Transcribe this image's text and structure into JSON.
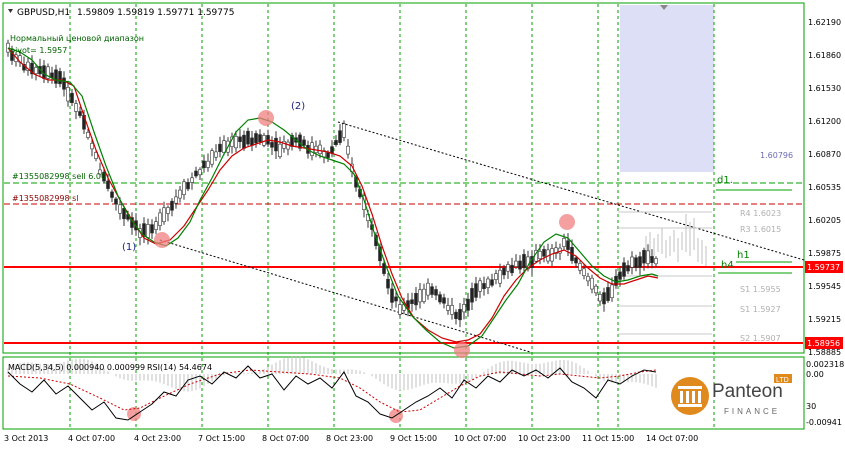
{
  "window": {
    "title": "GBPUSD,H1",
    "ohlc": "1.59809 1.59819 1.59771 1.59775",
    "indicator_lines": [
      "Нормальный ценовой диапазон",
      "pivot= 1.5957"
    ]
  },
  "order_labels": {
    "sell_order": "#1355082998 sell 6.00",
    "stop_loss": "#1355082998 sl"
  },
  "wave_labels": [
    "(1)",
    "(2)"
  ],
  "price_axis": {
    "ticks": [
      "1.62190",
      "1.61860",
      "1.61530",
      "1.61200",
      "1.60870",
      "1.60535",
      "1.60205",
      "1.59875",
      "1.59545",
      "1.59215",
      "1.58885"
    ],
    "current_price": "1.59737",
    "support_level": "1.58956",
    "range_label": "1.60796"
  },
  "time_axis": {
    "ticks": [
      "3 Oct 2013",
      "4 Oct 07:00",
      "4 Oct 23:00",
      "7 Oct 15:00",
      "8 Oct 07:00",
      "8 Oct 23:00",
      "9 Oct 15:00",
      "10 Oct 07:00",
      "10 Oct 23:00",
      "11 Oct 15:00",
      "14 Oct 07:00"
    ]
  },
  "pivot_labels": {
    "d1": "d1.",
    "h1": "h1",
    "h4": "h4",
    "r4": "R4 1.6023",
    "r3": "R3 1.6015",
    "s1": "S1 1.5927",
    "s2": "S2 1.5907",
    "s_near": "S1 1.5955"
  },
  "subwindow": {
    "macd_label": "MACD(5,34,5) 0.000940 0.000999",
    "rsi_label": "RSI(14) 54.4674",
    "ticks": [
      "0.002318",
      "0.00",
      "30",
      "-0.00941"
    ],
    "tick_70": "70"
  },
  "logo": {
    "brand": "Panteon",
    "sub": "FINANCE",
    "badge": "LTD"
  },
  "colors": {
    "grid_green": "#00a000",
    "price_red": "#ff0000",
    "ma_red": "#cc0000",
    "ma_green": "#008000",
    "candle": "#333333",
    "highlight": "#f08080",
    "range_box": "#dcdff5",
    "logo_orange": "#e08a1e"
  }
}
